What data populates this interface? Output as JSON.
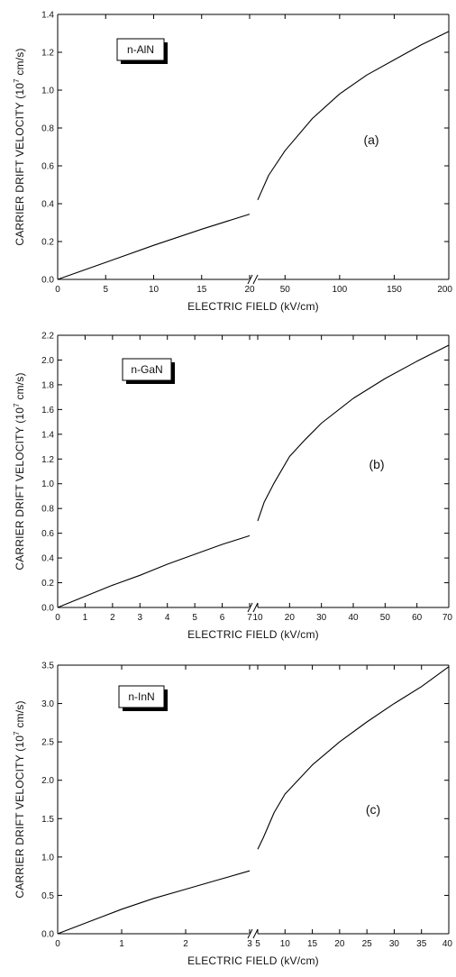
{
  "chart_data": [
    {
      "type": "line",
      "panel_label": "(a)",
      "material": "n-AlN",
      "xlabel": "ELECTRIC FIELD (kV/cm)",
      "ylabel_prefix": "CARRIER DRIFT VELOCITY (10",
      "ylabel_exp": "7",
      "ylabel_suffix": " cm/s)",
      "ylim": [
        0,
        1.4
      ],
      "yticks": [
        0.0,
        0.2,
        0.4,
        0.6,
        0.8,
        1.0,
        1.2,
        1.4
      ],
      "ytick_labels": [
        "0.0",
        "0.2",
        "0.4",
        "0.6",
        "0.8",
        "1.0",
        "1.2",
        "1.4"
      ],
      "x_break": true,
      "left_xlim": [
        0,
        20
      ],
      "left_xticks": [
        0,
        5,
        10,
        15,
        20
      ],
      "left_xtick_labels": [
        "0",
        "5",
        "10",
        "15",
        "20"
      ],
      "right_xlim": [
        25,
        200
      ],
      "right_xticks": [
        50,
        100,
        150,
        200
      ],
      "right_xtick_labels": [
        "50",
        "100",
        "150",
        "200"
      ],
      "left_segment": {
        "x": [
          0,
          5,
          10,
          15,
          20
        ],
        "y": [
          0.0,
          0.09,
          0.18,
          0.265,
          0.345
        ]
      },
      "right_segment": {
        "x": [
          25,
          35,
          50,
          75,
          100,
          125,
          150,
          175,
          200
        ],
        "y": [
          0.42,
          0.55,
          0.68,
          0.85,
          0.98,
          1.08,
          1.16,
          1.24,
          1.31
        ]
      }
    },
    {
      "type": "line",
      "panel_label": "(b)",
      "material": "n-GaN",
      "xlabel": "ELECTRIC FIELD (kV/cm)",
      "ylabel_prefix": "CARRIER DRIFT VELOCITY (10",
      "ylabel_exp": "7",
      "ylabel_suffix": " cm/s)",
      "ylim": [
        0,
        2.2
      ],
      "yticks": [
        0.0,
        0.2,
        0.4,
        0.6,
        0.8,
        1.0,
        1.2,
        1.4,
        1.6,
        1.8,
        2.0,
        2.2
      ],
      "ytick_labels": [
        "0.0",
        "0.2",
        "0.4",
        "0.6",
        "0.8",
        "1.0",
        "1.2",
        "1.4",
        "1.6",
        "1.8",
        "2.0",
        "2.2"
      ],
      "x_break": true,
      "left_xlim": [
        0,
        7
      ],
      "left_xticks": [
        0,
        1,
        2,
        3,
        4,
        5,
        6,
        7
      ],
      "left_xtick_labels": [
        "0",
        "1",
        "2",
        "3",
        "4",
        "5",
        "6",
        "7"
      ],
      "right_xlim": [
        10,
        70
      ],
      "right_xticks": [
        10,
        20,
        30,
        40,
        50,
        60,
        70
      ],
      "right_xtick_labels": [
        "10",
        "20",
        "30",
        "40",
        "50",
        "60",
        "70"
      ],
      "left_segment": {
        "x": [
          0,
          1,
          2,
          3,
          4,
          5,
          6,
          7
        ],
        "y": [
          0.0,
          0.09,
          0.18,
          0.26,
          0.35,
          0.43,
          0.51,
          0.58
        ]
      },
      "right_segment": {
        "x": [
          10,
          12,
          15,
          20,
          25,
          30,
          40,
          50,
          60,
          70
        ],
        "y": [
          0.7,
          0.85,
          1.0,
          1.22,
          1.36,
          1.49,
          1.69,
          1.85,
          1.99,
          2.12
        ]
      }
    },
    {
      "type": "line",
      "panel_label": "(c)",
      "material": "n-InN",
      "xlabel": "ELECTRIC FIELD (kV/cm)",
      "ylabel_prefix": "CARRIER DRIFT VELOCITY (10",
      "ylabel_exp": "7",
      "ylabel_suffix": " cm/s)",
      "ylim": [
        0,
        3.5
      ],
      "yticks": [
        0.0,
        0.5,
        1.0,
        1.5,
        2.0,
        2.5,
        3.0,
        3.5
      ],
      "ytick_labels": [
        "0.0",
        "0.5",
        "1.0",
        "1.5",
        "2.0",
        "2.5",
        "3.0",
        "3.5"
      ],
      "x_break": true,
      "left_xlim": [
        0,
        3
      ],
      "left_xticks": [
        0,
        1,
        2,
        3
      ],
      "left_xtick_labels": [
        "0",
        "1",
        "2",
        "3"
      ],
      "right_xlim": [
        5,
        40
      ],
      "right_xticks": [
        5,
        10,
        15,
        20,
        25,
        30,
        35,
        40
      ],
      "right_xtick_labels": [
        "5",
        "10",
        "15",
        "20",
        "25",
        "30",
        "35",
        "40"
      ],
      "left_segment": {
        "x": [
          0,
          0.5,
          1,
          1.5,
          2,
          2.5,
          3
        ],
        "y": [
          0.0,
          0.16,
          0.32,
          0.46,
          0.58,
          0.7,
          0.82
        ]
      },
      "right_segment": {
        "x": [
          5,
          6,
          8,
          10,
          15,
          20,
          25,
          30,
          35,
          40
        ],
        "y": [
          1.1,
          1.25,
          1.58,
          1.82,
          2.2,
          2.5,
          2.76,
          3.0,
          3.22,
          3.48
        ]
      }
    }
  ]
}
